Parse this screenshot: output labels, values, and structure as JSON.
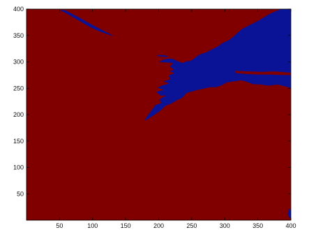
{
  "chart_data": {
    "type": "heatmap",
    "title": "",
    "xlabel": "",
    "ylabel": "",
    "xlim": [
      0,
      400
    ],
    "ylim": [
      0,
      400
    ],
    "x_ticks": [
      50,
      100,
      150,
      200,
      250,
      300,
      350,
      400
    ],
    "y_ticks": [
      50,
      100,
      150,
      200,
      250,
      300,
      350,
      400
    ],
    "grid": false,
    "legend": "none",
    "background_class_color": "#800000",
    "region_class_color": "#0a1296",
    "regions": [
      {
        "name": "blue-class-main",
        "points": [
          [
            400,
            400
          ],
          [
            385,
            400
          ],
          [
            368,
            391
          ],
          [
            352,
            379
          ],
          [
            338,
            370
          ],
          [
            327,
            363
          ],
          [
            320,
            356
          ],
          [
            313,
            348
          ],
          [
            306,
            341
          ],
          [
            297,
            336
          ],
          [
            289,
            329
          ],
          [
            281,
            324
          ],
          [
            272,
            318
          ],
          [
            264,
            315
          ],
          [
            258,
            311
          ],
          [
            252,
            305
          ],
          [
            248,
            302
          ],
          [
            242,
            301
          ],
          [
            236,
            298
          ],
          [
            229,
            301
          ],
          [
            221,
            306
          ],
          [
            214,
            306
          ],
          [
            207,
            304
          ],
          [
            200,
            300
          ],
          [
            209,
            299
          ],
          [
            222,
            298
          ],
          [
            217,
            291
          ],
          [
            223,
            285
          ],
          [
            216,
            282
          ],
          [
            224,
            279
          ],
          [
            215,
            274
          ],
          [
            218,
            267
          ],
          [
            207,
            263
          ],
          [
            216,
            259
          ],
          [
            204,
            255
          ],
          [
            198,
            251
          ],
          [
            208,
            247
          ],
          [
            196,
            243
          ],
          [
            203,
            236
          ],
          [
            211,
            236
          ],
          [
            201,
            229
          ],
          [
            204,
            222
          ],
          [
            195,
            218
          ],
          [
            189,
            208
          ],
          [
            182,
            196
          ],
          [
            178,
            188
          ],
          [
            189,
            196
          ],
          [
            197,
            203
          ],
          [
            205,
            210
          ],
          [
            210,
            217
          ],
          [
            219,
            221
          ],
          [
            227,
            227
          ],
          [
            236,
            232
          ],
          [
            242,
            241
          ],
          [
            251,
            244
          ],
          [
            259,
            247
          ],
          [
            267,
            249
          ],
          [
            277,
            252
          ],
          [
            286,
            252
          ],
          [
            294,
            255
          ],
          [
            303,
            261
          ],
          [
            314,
            263
          ],
          [
            325,
            265
          ],
          [
            334,
            262
          ],
          [
            342,
            258
          ],
          [
            355,
            257
          ],
          [
            366,
            255
          ],
          [
            380,
            257
          ],
          [
            393,
            253
          ],
          [
            400,
            250
          ]
        ]
      },
      {
        "name": "red-stripe",
        "points": [
          [
            315,
            283
          ],
          [
            335,
            282
          ],
          [
            355,
            281
          ],
          [
            375,
            282
          ],
          [
            395,
            280
          ],
          [
            400,
            279
          ],
          [
            400,
            275
          ],
          [
            388,
            275
          ],
          [
            370,
            276
          ],
          [
            350,
            276
          ],
          [
            333,
            277
          ],
          [
            316,
            279
          ]
        ]
      },
      {
        "name": "red-notch-lower",
        "points": [
          [
            276,
            246
          ],
          [
            288,
            252
          ],
          [
            300,
            256
          ],
          [
            310,
            259
          ],
          [
            315,
            261
          ],
          [
            302,
            251
          ],
          [
            290,
            247
          ],
          [
            281,
            245
          ]
        ]
      },
      {
        "name": "blue-diagonal-streak",
        "points": [
          [
            58,
            398
          ],
          [
            78,
            385
          ],
          [
            98,
            371
          ],
          [
            112,
            362
          ],
          [
            123,
            355
          ],
          [
            132,
            349
          ],
          [
            128,
            350
          ],
          [
            112,
            357
          ],
          [
            96,
            366
          ],
          [
            78,
            379
          ],
          [
            60,
            392
          ],
          [
            50,
            398
          ]
        ]
      },
      {
        "name": "blue-left-bits",
        "points": [
          [
            198,
            313
          ],
          [
            206,
            313
          ],
          [
            215,
            311
          ],
          [
            211,
            309
          ],
          [
            204,
            310
          ],
          [
            197,
            311
          ]
        ]
      },
      {
        "name": "blue-corner-bottom-right",
        "points": [
          [
            398,
            4
          ],
          [
            400,
            4
          ],
          [
            400,
            20
          ],
          [
            397,
            21
          ],
          [
            395,
            12
          ]
        ]
      }
    ]
  }
}
